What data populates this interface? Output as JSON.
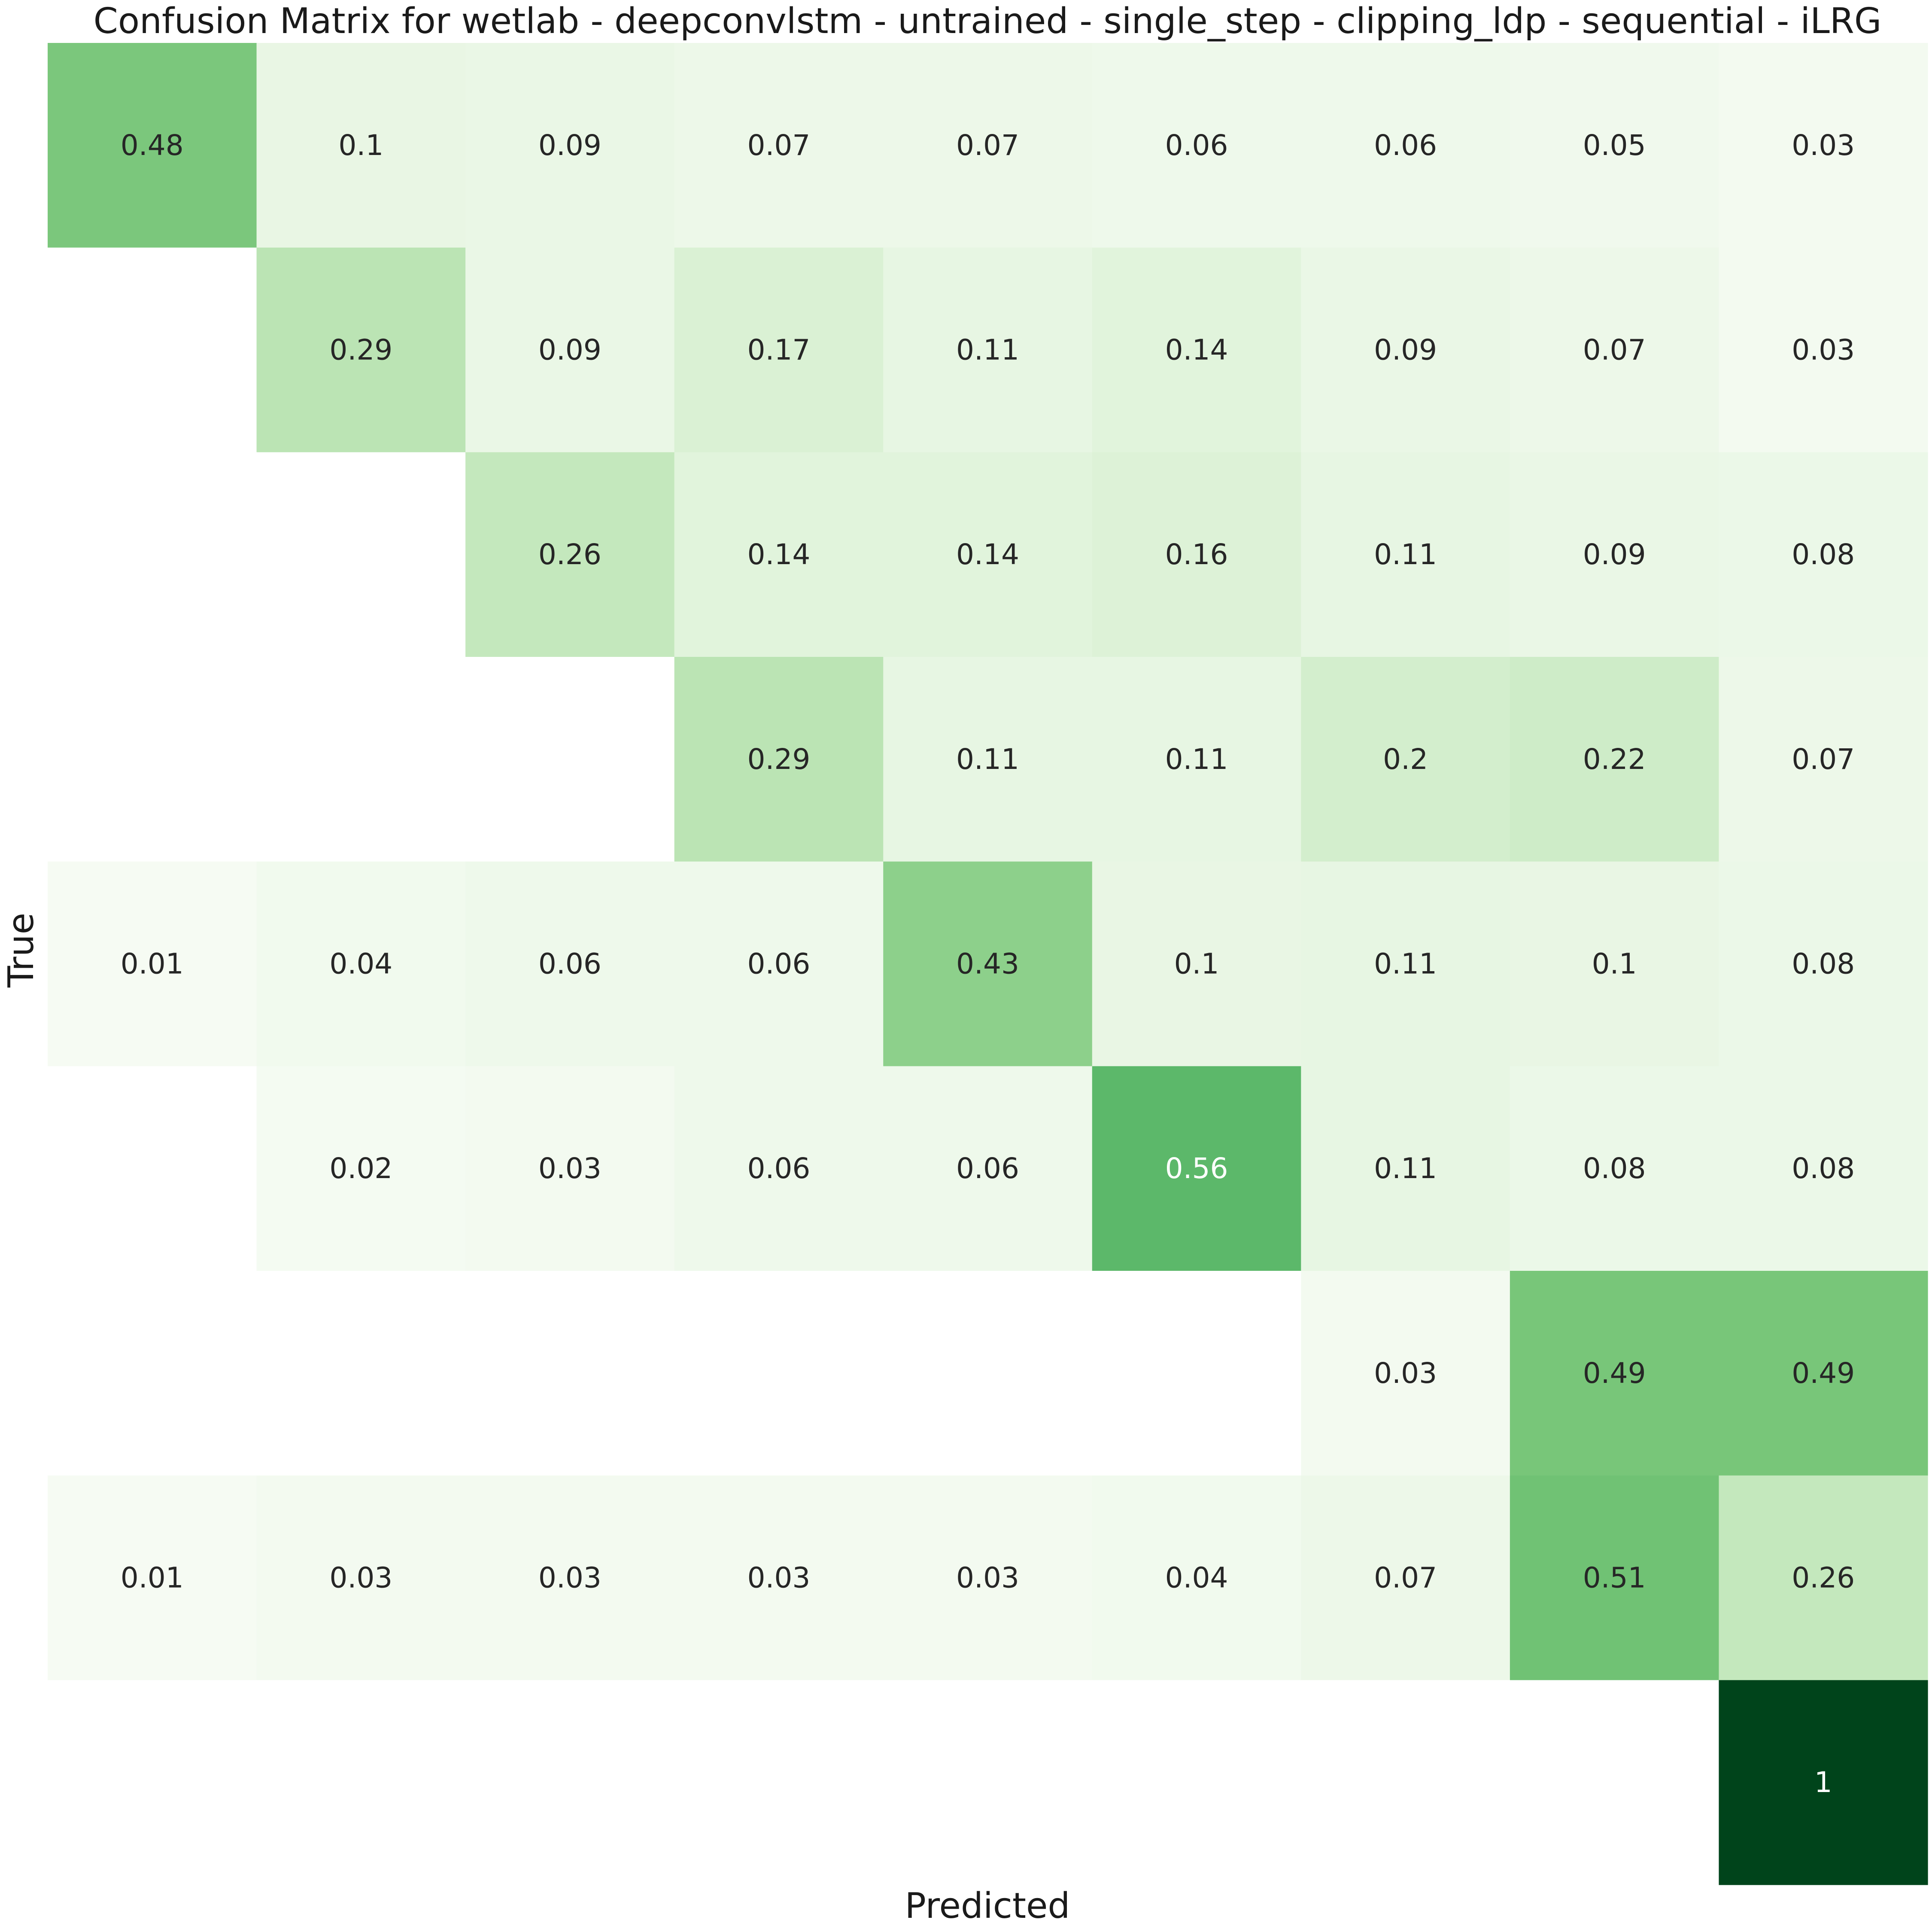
{
  "chart_data": {
    "type": "heatmap",
    "title": "Confusion Matrix for wetlab - deepconvlstm - untrained - single_step - clipping_ldp - sequential - iLRG",
    "xlabel": "Predicted",
    "ylabel": "True",
    "colormap": "Greens",
    "vmin": 0,
    "vmax": 1,
    "values": [
      [
        0.48,
        0.1,
        0.09,
        0.07,
        0.07,
        0.06,
        0.06,
        0.05,
        0.03
      ],
      [
        null,
        0.29,
        0.09,
        0.17,
        0.11,
        0.14,
        0.09,
        0.07,
        0.03
      ],
      [
        null,
        null,
        0.26,
        0.14,
        0.14,
        0.16,
        0.11,
        0.09,
        0.08
      ],
      [
        null,
        null,
        null,
        0.29,
        0.11,
        0.11,
        0.2,
        0.22,
        0.07
      ],
      [
        0.01,
        0.04,
        0.06,
        0.06,
        0.43,
        0.1,
        0.11,
        0.1,
        0.08
      ],
      [
        null,
        0.02,
        0.03,
        0.06,
        0.06,
        0.56,
        0.11,
        0.08,
        0.08
      ],
      [
        null,
        null,
        null,
        null,
        null,
        null,
        0.03,
        0.49,
        0.49
      ],
      [
        0.01,
        0.03,
        0.03,
        0.03,
        0.03,
        0.04,
        0.07,
        0.51,
        0.26
      ],
      [
        null,
        null,
        null,
        null,
        null,
        null,
        null,
        null,
        1
      ]
    ]
  },
  "colors": {
    "zero": "#ffffff",
    "dark_text": "#262626",
    "light_text": "#ffffff"
  }
}
